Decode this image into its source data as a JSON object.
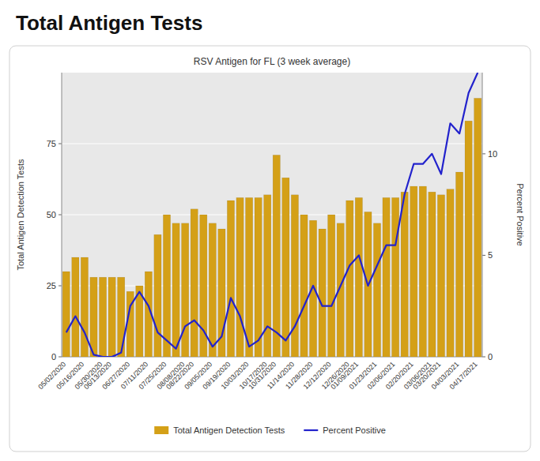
{
  "chart_data": {
    "type": "bar",
    "title": "Total Antigen Tests",
    "subtitle": "RSV Antigen for FL (3 week average)",
    "y_label": "Total Antigen Detection Tests",
    "y2_label": "Percent Positive",
    "categories": [
      "05/02/2020",
      null,
      "05/16/2020",
      null,
      "05/30/2020",
      "06/13/2020",
      null,
      "06/27/2020",
      null,
      "07/11/2020",
      null,
      "07/25/2020",
      null,
      "08/08/2020",
      "08/22/2020",
      null,
      "09/05/2020",
      null,
      "09/19/2020",
      null,
      "10/03/2020",
      null,
      "10/17/2020",
      "10/31/2020",
      null,
      "11/14/2020",
      null,
      "11/28/2020",
      null,
      "12/12/2020",
      null,
      "12/26/2020",
      "01/09/2021",
      null,
      "01/23/2021",
      null,
      "02/06/2021",
      null,
      "02/20/2021",
      null,
      "03/06/2021",
      "03/20/2021",
      null,
      "04/03/2021",
      null,
      "04/17/2021"
    ],
    "series": [
      {
        "name": "Total Antigen Detection Tests",
        "type": "bar",
        "color": "#D4A017",
        "values": [
          30,
          35,
          35,
          28,
          28,
          28,
          28,
          23,
          25,
          30,
          43,
          50,
          47,
          47,
          52,
          50,
          47,
          45,
          55,
          56,
          56,
          56,
          57,
          71,
          63,
          57,
          50,
          48,
          45,
          50,
          47,
          55,
          56,
          51,
          47,
          56,
          56,
          58,
          60,
          60,
          58,
          57,
          59,
          65,
          83,
          91
        ]
      },
      {
        "name": "Percent Positive",
        "type": "line",
        "color": "#2222CC",
        "axis": "y2",
        "values": [
          1.2,
          2.0,
          1.2,
          0.1,
          0.0,
          0.0,
          0.2,
          2.5,
          3.2,
          2.5,
          1.2,
          0.8,
          0.4,
          1.5,
          1.8,
          1.3,
          0.5,
          1.0,
          2.9,
          2.0,
          0.5,
          0.8,
          1.5,
          1.2,
          0.8,
          1.5,
          2.5,
          3.5,
          2.5,
          2.5,
          3.5,
          4.5,
          5.0,
          3.5,
          4.5,
          5.5,
          5.5,
          8.0,
          9.5,
          9.5,
          10.0,
          9.0,
          11.5,
          11.0,
          13.0,
          14.0
        ]
      }
    ],
    "ylim": [
      0,
      100
    ],
    "yticks": [
      0,
      25,
      50,
      75
    ],
    "y2lim": [
      0,
      14
    ],
    "y2ticks": [
      0,
      5,
      10
    ],
    "grid": true,
    "legend": "bottom"
  }
}
